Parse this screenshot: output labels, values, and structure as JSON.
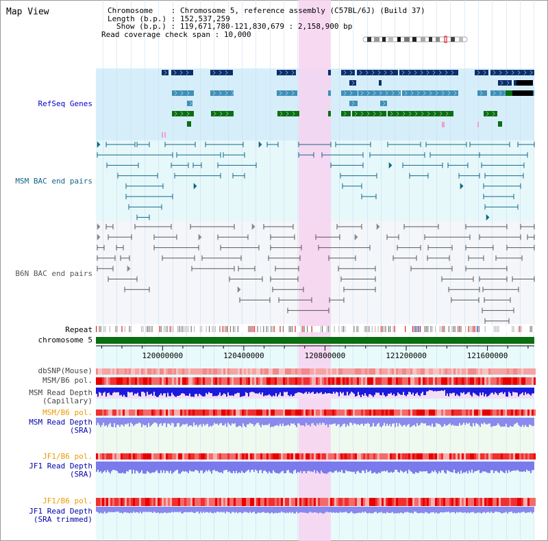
{
  "window": {
    "title": "Map View"
  },
  "info": {
    "chromosome_key": "Chromosome",
    "chromosome_value": "Chromosome 5, reference assembly (C57BL/6J) (Build 37)",
    "length_key": "Length (b.p.)",
    "length_value": "152,537,259",
    "show_key": "Show (b.p.)",
    "show_value": "119,671,780-121,830,679 : 2,158,900 bp",
    "coverage_key": "Read coverage check span",
    "coverage_value": "10,000"
  },
  "tracks": {
    "refseq": {
      "label": "RefSeq Genes",
      "color": "#0000cc"
    },
    "msm_bac": {
      "label": "MSM BAC end pairs",
      "color": "#116688"
    },
    "b6n_bac": {
      "label": "B6N BAC end pairs",
      "color": "#555555"
    },
    "repeat": {
      "label": "Repeat"
    },
    "chromosome": {
      "label": "chromosome 5"
    },
    "dbsnp": {
      "label": "dbSNP(Mouse)",
      "color": "#444444"
    },
    "msm_b6_pol_1": {
      "label": "MSM/B6 pol.",
      "color": "#444444"
    },
    "msm_read_depth_cap": {
      "label": "MSM Read Depth",
      "label2": "(Capillary)",
      "color": "#444444"
    },
    "msm_b6_pol_2": {
      "label": "MSM/B6 pol.",
      "color": "#ee9900"
    },
    "msm_read_depth_sra": {
      "label": "MSM Read Depth",
      "label2": "(SRA)",
      "color": "#0000aa"
    },
    "jf1_b6_pol_1": {
      "label": "JF1/B6 pol.",
      "color": "#ee9900"
    },
    "jf1_read_depth_sra": {
      "label": "JF1 Read Depth",
      "label2": "(SRA)",
      "color": "#0000aa"
    },
    "jf1_b6_pol_2": {
      "label": "JF1/B6 pol.",
      "color": "#ee9900"
    },
    "jf1_read_depth_trim": {
      "label": "JF1 Read Depth",
      "label2": "(SRA trimmed)",
      "color": "#0000aa"
    }
  },
  "axis": {
    "start": 119671780,
    "end": 121830679,
    "ticks": [
      "120000000",
      "120400000",
      "120800000",
      "121200000",
      "121600000"
    ],
    "tick_values": [
      120000000,
      120400000,
      120800000,
      121200000,
      121600000
    ]
  },
  "colors": {
    "highlight": "#f7d2f0",
    "refseq_bg": "#d6eefa",
    "msm_bg": "#e6f8fa",
    "b6n_bg": "#f4f6f9",
    "gene_dark": "#0c2f6b",
    "gene_mid": "#3f8fb8",
    "gene_green": "#0a6e12",
    "chromosome_bar": "#0a6e12"
  },
  "icons": {
    "ideogram": "chromosome-ideogram-icon"
  }
}
